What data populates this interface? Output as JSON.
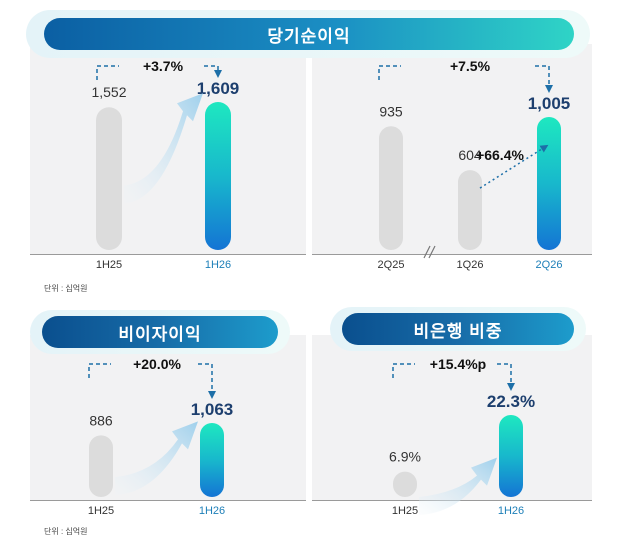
{
  "unit_label": "단위 : 십억원",
  "colors": {
    "bar_grey": "#dcdcdc",
    "bar_top": "#1ee8c0",
    "bar_bottom": "#1474d4",
    "dash": "#1d6fa8",
    "highlight_text": "#1d3f6e",
    "highlight_cat": "#1d7fb8"
  },
  "chart_data": [
    {
      "type": "bar",
      "title": "당기순이익",
      "categories": [
        "1H25",
        "1H26"
      ],
      "values": [
        1552,
        1609
      ],
      "value_labels": [
        "1,552",
        "1,609"
      ],
      "change_label": "+3.7%",
      "highlight": [
        false,
        true
      ],
      "grid": false
    },
    {
      "type": "bar",
      "categories": [
        "2Q25",
        "1Q26",
        "2Q26"
      ],
      "values": [
        935,
        604,
        1005
      ],
      "value_labels": [
        "935",
        "604",
        "1,005"
      ],
      "change_label": "+7.5%",
      "secondary_change_label": "+66.4%",
      "highlight": [
        false,
        false,
        true
      ],
      "axis_break": true,
      "grid": false
    },
    {
      "type": "bar",
      "title": "비이자이익",
      "categories": [
        "1H25",
        "1H26"
      ],
      "values": [
        886,
        1063
      ],
      "value_labels": [
        "886",
        "1,063"
      ],
      "change_label": "+20.0%",
      "highlight": [
        false,
        true
      ],
      "grid": false
    },
    {
      "type": "bar",
      "title": "비은행 비중",
      "categories": [
        "1H25",
        "1H26"
      ],
      "values": [
        6.9,
        22.3
      ],
      "value_labels": [
        "6.9%",
        "22.3%"
      ],
      "change_label": "+15.4%p",
      "highlight": [
        false,
        true
      ],
      "grid": false
    }
  ]
}
